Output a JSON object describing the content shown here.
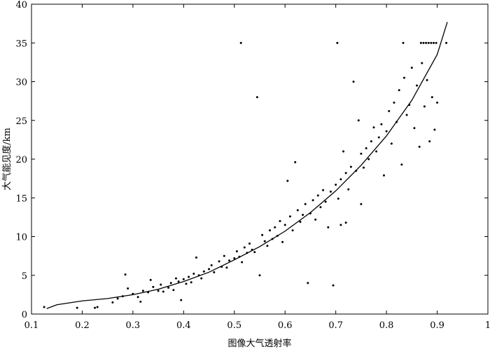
{
  "chart_data": {
    "type": "scatter",
    "xlabel": "图像大气透射率",
    "ylabel": "大气能见度/km",
    "xlim": [
      0.1,
      1
    ],
    "xticks": [
      0.1,
      0.2,
      0.3,
      0.4,
      0.5,
      0.6,
      0.7,
      0.8,
      0.9,
      1
    ],
    "ylim": [
      0,
      40
    ],
    "yticks": [
      0,
      5,
      10,
      15,
      20,
      25,
      30,
      35,
      40
    ],
    "color": "#000000",
    "points": {
      "x": [
        0.125,
        0.19,
        0.225,
        0.23,
        0.26,
        0.27,
        0.28,
        0.285,
        0.29,
        0.3,
        0.31,
        0.315,
        0.32,
        0.33,
        0.335,
        0.34,
        0.35,
        0.355,
        0.36,
        0.37,
        0.375,
        0.38,
        0.385,
        0.39,
        0.395,
        0.4,
        0.405,
        0.41,
        0.415,
        0.42,
        0.425,
        0.43,
        0.435,
        0.44,
        0.45,
        0.455,
        0.46,
        0.47,
        0.475,
        0.48,
        0.485,
        0.49,
        0.5,
        0.505,
        0.51,
        0.515,
        0.52,
        0.525,
        0.53,
        0.535,
        0.54,
        0.545,
        0.55,
        0.555,
        0.56,
        0.565,
        0.57,
        0.575,
        0.58,
        0.585,
        0.59,
        0.595,
        0.6,
        0.605,
        0.61,
        0.615,
        0.62,
        0.625,
        0.63,
        0.635,
        0.64,
        0.645,
        0.65,
        0.655,
        0.66,
        0.665,
        0.67,
        0.675,
        0.68,
        0.685,
        0.69,
        0.695,
        0.7,
        0.705,
        0.71,
        0.715,
        0.72,
        0.725,
        0.73,
        0.735,
        0.74,
        0.745,
        0.75,
        0.755,
        0.76,
        0.765,
        0.77,
        0.775,
        0.78,
        0.785,
        0.79,
        0.795,
        0.8,
        0.805,
        0.81,
        0.815,
        0.82,
        0.825,
        0.83,
        0.835,
        0.84,
        0.845,
        0.85,
        0.855,
        0.86,
        0.865,
        0.87,
        0.875,
        0.88,
        0.885,
        0.89,
        0.895,
        0.9,
        0.72,
        0.71,
        0.75,
        0.513,
        0.703,
        0.833,
        0.868,
        0.873,
        0.878,
        0.883,
        0.888,
        0.893,
        0.898,
        0.918
      ],
      "y": [
        0.9,
        0.8,
        0.8,
        0.9,
        1.5,
        2.0,
        2.3,
        5.1,
        3.3,
        2.6,
        2.2,
        1.6,
        3.0,
        2.8,
        4.4,
        3.5,
        3.0,
        3.8,
        2.9,
        3.4,
        4.0,
        3.1,
        4.6,
        4.2,
        1.8,
        4.5,
        3.9,
        4.8,
        4.1,
        5.2,
        7.3,
        5.0,
        4.6,
        5.5,
        5.8,
        6.3,
        5.4,
        6.8,
        6.1,
        7.5,
        6.0,
        6.9,
        7.2,
        8.1,
        7.4,
        6.7,
        8.6,
        7.9,
        9.1,
        8.3,
        8.0,
        28.0,
        5.0,
        10.2,
        9.4,
        8.8,
        10.8,
        9.7,
        11.2,
        10.1,
        12.0,
        9.3,
        11.5,
        17.2,
        12.6,
        10.8,
        19.6,
        13.4,
        11.9,
        12.8,
        14.2,
        4.0,
        13.0,
        14.7,
        12.2,
        15.3,
        13.8,
        16.0,
        14.5,
        11.2,
        15.8,
        3.7,
        16.7,
        14.9,
        17.4,
        21.0,
        18.2,
        16.1,
        19.0,
        30.0,
        18.5,
        25.0,
        20.7,
        18.9,
        21.4,
        20.0,
        22.3,
        24.1,
        21.0,
        22.8,
        24.5,
        17.9,
        23.6,
        26.2,
        22.0,
        27.3,
        24.8,
        28.9,
        19.3,
        30.5,
        25.7,
        27.0,
        31.8,
        24.0,
        29.5,
        21.6,
        32.4,
        26.8,
        30.2,
        22.3,
        28.0,
        23.8,
        27.3,
        11.8,
        11.5,
        14.2,
        35,
        35,
        35,
        35,
        35,
        35,
        35,
        35,
        35,
        35,
        35
      ]
    },
    "curve": {
      "x": [
        0.13,
        0.15,
        0.2,
        0.25,
        0.3,
        0.35,
        0.4,
        0.45,
        0.5,
        0.55,
        0.6,
        0.65,
        0.7,
        0.75,
        0.8,
        0.85,
        0.9,
        0.92
      ],
      "y": [
        0.7,
        1.2,
        1.7,
        2.0,
        2.5,
        3.2,
        4.2,
        5.4,
        7.0,
        8.7,
        10.7,
        13.1,
        15.9,
        19.2,
        23.0,
        27.6,
        33.5,
        37.7
      ]
    }
  }
}
